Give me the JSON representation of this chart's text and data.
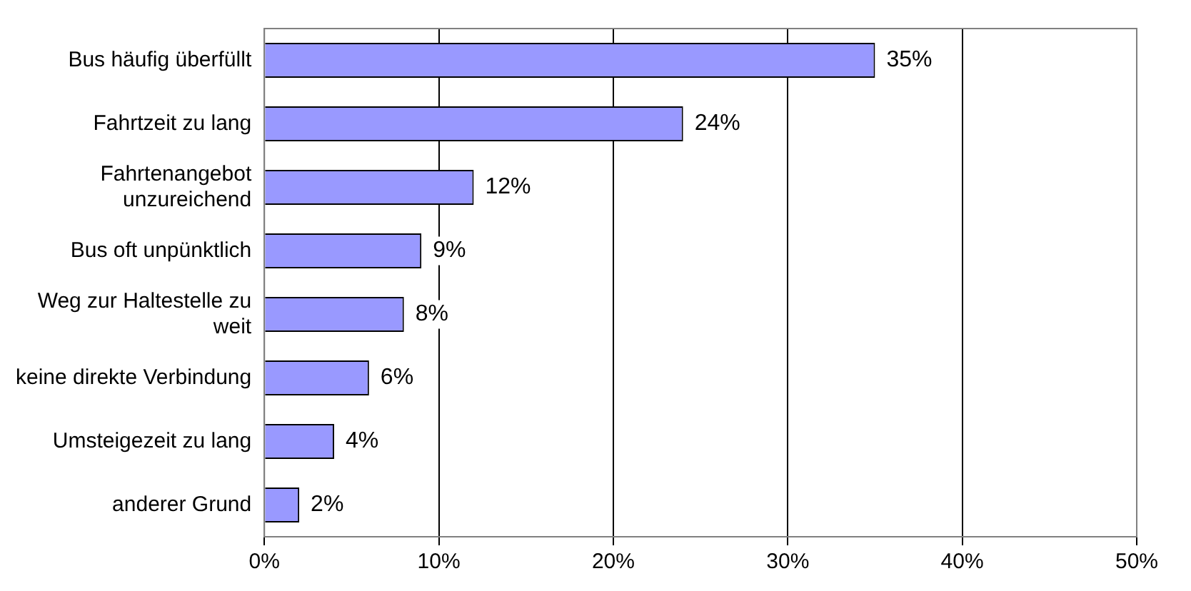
{
  "chart_data": {
    "type": "bar",
    "orientation": "horizontal",
    "categories": [
      "Bus häufig überfüllt",
      "Fahrtzeit zu lang",
      "Fahrtenangebot unzureichend",
      "Bus oft unpünktlich",
      "Weg zur Haltestelle zu weit",
      "keine direkte Verbindung",
      "Umsteigezeit zu lang",
      "anderer Grund"
    ],
    "values": [
      35,
      24,
      12,
      9,
      8,
      6,
      4,
      2
    ],
    "value_labels": [
      "35%",
      "24%",
      "12%",
      "9%",
      "8%",
      "6%",
      "4%",
      "2%"
    ],
    "color": "#9999ff",
    "xlim": [
      0,
      50
    ],
    "xticks": [
      {
        "value": 0,
        "label": "0%"
      },
      {
        "value": 10,
        "label": "10%"
      },
      {
        "value": 20,
        "label": "20%"
      },
      {
        "value": 30,
        "label": "30%"
      },
      {
        "value": 40,
        "label": "40%"
      },
      {
        "value": 50,
        "label": "50%"
      }
    ],
    "grid": "x",
    "legend": false
  }
}
